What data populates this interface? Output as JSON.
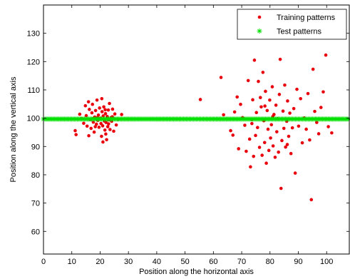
{
  "chart_data": {
    "type": "scatter",
    "title": "",
    "xlabel": "Position along the horizontal axis",
    "ylabel": "Position along the vertical axis",
    "xlim": [
      0,
      108
    ],
    "ylim": [
      52,
      140
    ],
    "xticks": [
      0,
      10,
      20,
      30,
      40,
      50,
      60,
      70,
      80,
      90,
      100
    ],
    "yticks": [
      60,
      70,
      80,
      90,
      100,
      110,
      120,
      130
    ],
    "grid": false,
    "legend_position": "top-right",
    "series": [
      {
        "name": "Training patterns",
        "color": "#e8000b",
        "marker": "dot",
        "points": [
          [
            11.2,
            95.6
          ],
          [
            11.5,
            94.2
          ],
          [
            12.8,
            101.4
          ],
          [
            13.5,
            99.8
          ],
          [
            14.2,
            98.2
          ],
          [
            14.8,
            104.4
          ],
          [
            15.1,
            100.9
          ],
          [
            15.4,
            97.2
          ],
          [
            15.9,
            105.8
          ],
          [
            16.2,
            103.1
          ],
          [
            16.5,
            99.5
          ],
          [
            16.8,
            96.4
          ],
          [
            17.1,
            101.9
          ],
          [
            17.3,
            104.9
          ],
          [
            17.6,
            98.6
          ],
          [
            17.9,
            95.1
          ],
          [
            18.1,
            100.4
          ],
          [
            18.4,
            102.7
          ],
          [
            18.7,
            97.9
          ],
          [
            18.9,
            106.4
          ],
          [
            19.2,
            99.2
          ],
          [
            19.4,
            101.1
          ],
          [
            19.6,
            96.8
          ],
          [
            19.8,
            103.6
          ],
          [
            20.1,
            100.0
          ],
          [
            20.3,
            98.1
          ],
          [
            20.5,
            93.6
          ],
          [
            20.7,
            102.3
          ],
          [
            20.9,
            97.3
          ],
          [
            21.1,
            100.8
          ],
          [
            21.3,
            104.0
          ],
          [
            21.5,
            99.0
          ],
          [
            21.7,
            95.8
          ],
          [
            21.9,
            101.6
          ],
          [
            22.1,
            98.5
          ],
          [
            22.3,
            92.4
          ],
          [
            22.5,
            100.6
          ],
          [
            22.7,
            97.0
          ],
          [
            22.9,
            102.9
          ],
          [
            23.1,
            99.4
          ],
          [
            23.3,
            105.2
          ],
          [
            23.5,
            96.0
          ],
          [
            23.8,
            100.2
          ],
          [
            24.1,
            98.9
          ],
          [
            24.4,
            103.2
          ],
          [
            24.8,
            95.4
          ],
          [
            25.2,
            101.5
          ],
          [
            25.7,
            97.6
          ],
          [
            26.3,
            99.6
          ],
          [
            27.6,
            101.3
          ],
          [
            21.0,
            91.6
          ],
          [
            19.0,
            100.2
          ],
          [
            22.0,
            94.4
          ],
          [
            18.3,
            97.0
          ],
          [
            16.0,
            93.8
          ],
          [
            24.3,
            100.5
          ],
          [
            20.6,
            106.9
          ],
          [
            17.4,
            99.8
          ],
          [
            23.0,
            98.0
          ],
          [
            21.8,
            103.0
          ],
          [
            55.4,
            106.6
          ],
          [
            62.7,
            114.4
          ],
          [
            63.6,
            101.2
          ],
          [
            66.1,
            95.6
          ],
          [
            66.9,
            94.0
          ],
          [
            67.5,
            102.2
          ],
          [
            68.4,
            107.5
          ],
          [
            68.9,
            89.2
          ],
          [
            69.6,
            104.9
          ],
          [
            70.3,
            100.2
          ],
          [
            71.1,
            97.5
          ],
          [
            71.6,
            88.3
          ],
          [
            72.3,
            113.3
          ],
          [
            72.8,
            92.6
          ],
          [
            73.1,
            82.8
          ],
          [
            73.6,
            99.5
          ],
          [
            73.9,
            106.5
          ],
          [
            74.2,
            86.5
          ],
          [
            74.5,
            120.5
          ],
          [
            74.9,
            93.9
          ],
          [
            75.2,
            102.0
          ],
          [
            75.6,
            96.7
          ],
          [
            75.9,
            113.0
          ],
          [
            76.3,
            89.7
          ],
          [
            76.6,
            107.3
          ],
          [
            76.9,
            104.0
          ],
          [
            77.2,
            86.9
          ],
          [
            77.5,
            116.2
          ],
          [
            77.8,
            99.1
          ],
          [
            78.1,
            91.4
          ],
          [
            78.4,
            109.5
          ],
          [
            78.7,
            84.1
          ],
          [
            79.0,
            102.7
          ],
          [
            79.3,
            96.1
          ],
          [
            79.6,
            88.6
          ],
          [
            79.9,
            106.4
          ],
          [
            80.2,
            93.0
          ],
          [
            80.5,
            97.7
          ],
          [
            80.8,
            111.1
          ],
          [
            81.1,
            90.2
          ],
          [
            81.4,
            101.3
          ],
          [
            81.8,
            86.2
          ],
          [
            82.1,
            104.6
          ],
          [
            82.4,
            95.2
          ],
          [
            82.7,
            99.8
          ],
          [
            83.0,
            88.0
          ],
          [
            83.3,
            108.4
          ],
          [
            83.6,
            120.8
          ],
          [
            83.9,
            75.2
          ],
          [
            84.2,
            92.1
          ],
          [
            84.6,
            102.5
          ],
          [
            84.9,
            96.4
          ],
          [
            85.2,
            111.7
          ],
          [
            85.5,
            89.8
          ],
          [
            85.9,
            98.9
          ],
          [
            86.2,
            106.1
          ],
          [
            86.6,
            93.6
          ],
          [
            87.0,
            101.8
          ],
          [
            87.4,
            87.5
          ],
          [
            87.9,
            96.6
          ],
          [
            88.4,
            103.4
          ],
          [
            88.9,
            80.6
          ],
          [
            89.5,
            110.2
          ],
          [
            90.1,
            97.2
          ],
          [
            90.8,
            106.9
          ],
          [
            91.4,
            91.3
          ],
          [
            92.1,
            100.1
          ],
          [
            92.8,
            96.1
          ],
          [
            93.4,
            108.7
          ],
          [
            94.0,
            92.3
          ],
          [
            94.6,
            71.2
          ],
          [
            95.2,
            117.3
          ],
          [
            95.8,
            102.4
          ],
          [
            96.5,
            98.5
          ],
          [
            97.2,
            94.5
          ],
          [
            98.0,
            103.8
          ],
          [
            98.8,
            109.3
          ],
          [
            99.7,
            122.3
          ],
          [
            100.6,
            97.0
          ],
          [
            101.8,
            94.8
          ],
          [
            78.2,
            104.3
          ],
          [
            81.0,
            100.6
          ],
          [
            73.6,
            98.1
          ],
          [
            86.1,
            90.7
          ]
        ]
      },
      {
        "name": "Test patterns",
        "color": "#00e000",
        "marker": "asterisk",
        "x_start": 0,
        "x_end": 108,
        "x_step": 0.5,
        "y": 99.7
      }
    ]
  }
}
